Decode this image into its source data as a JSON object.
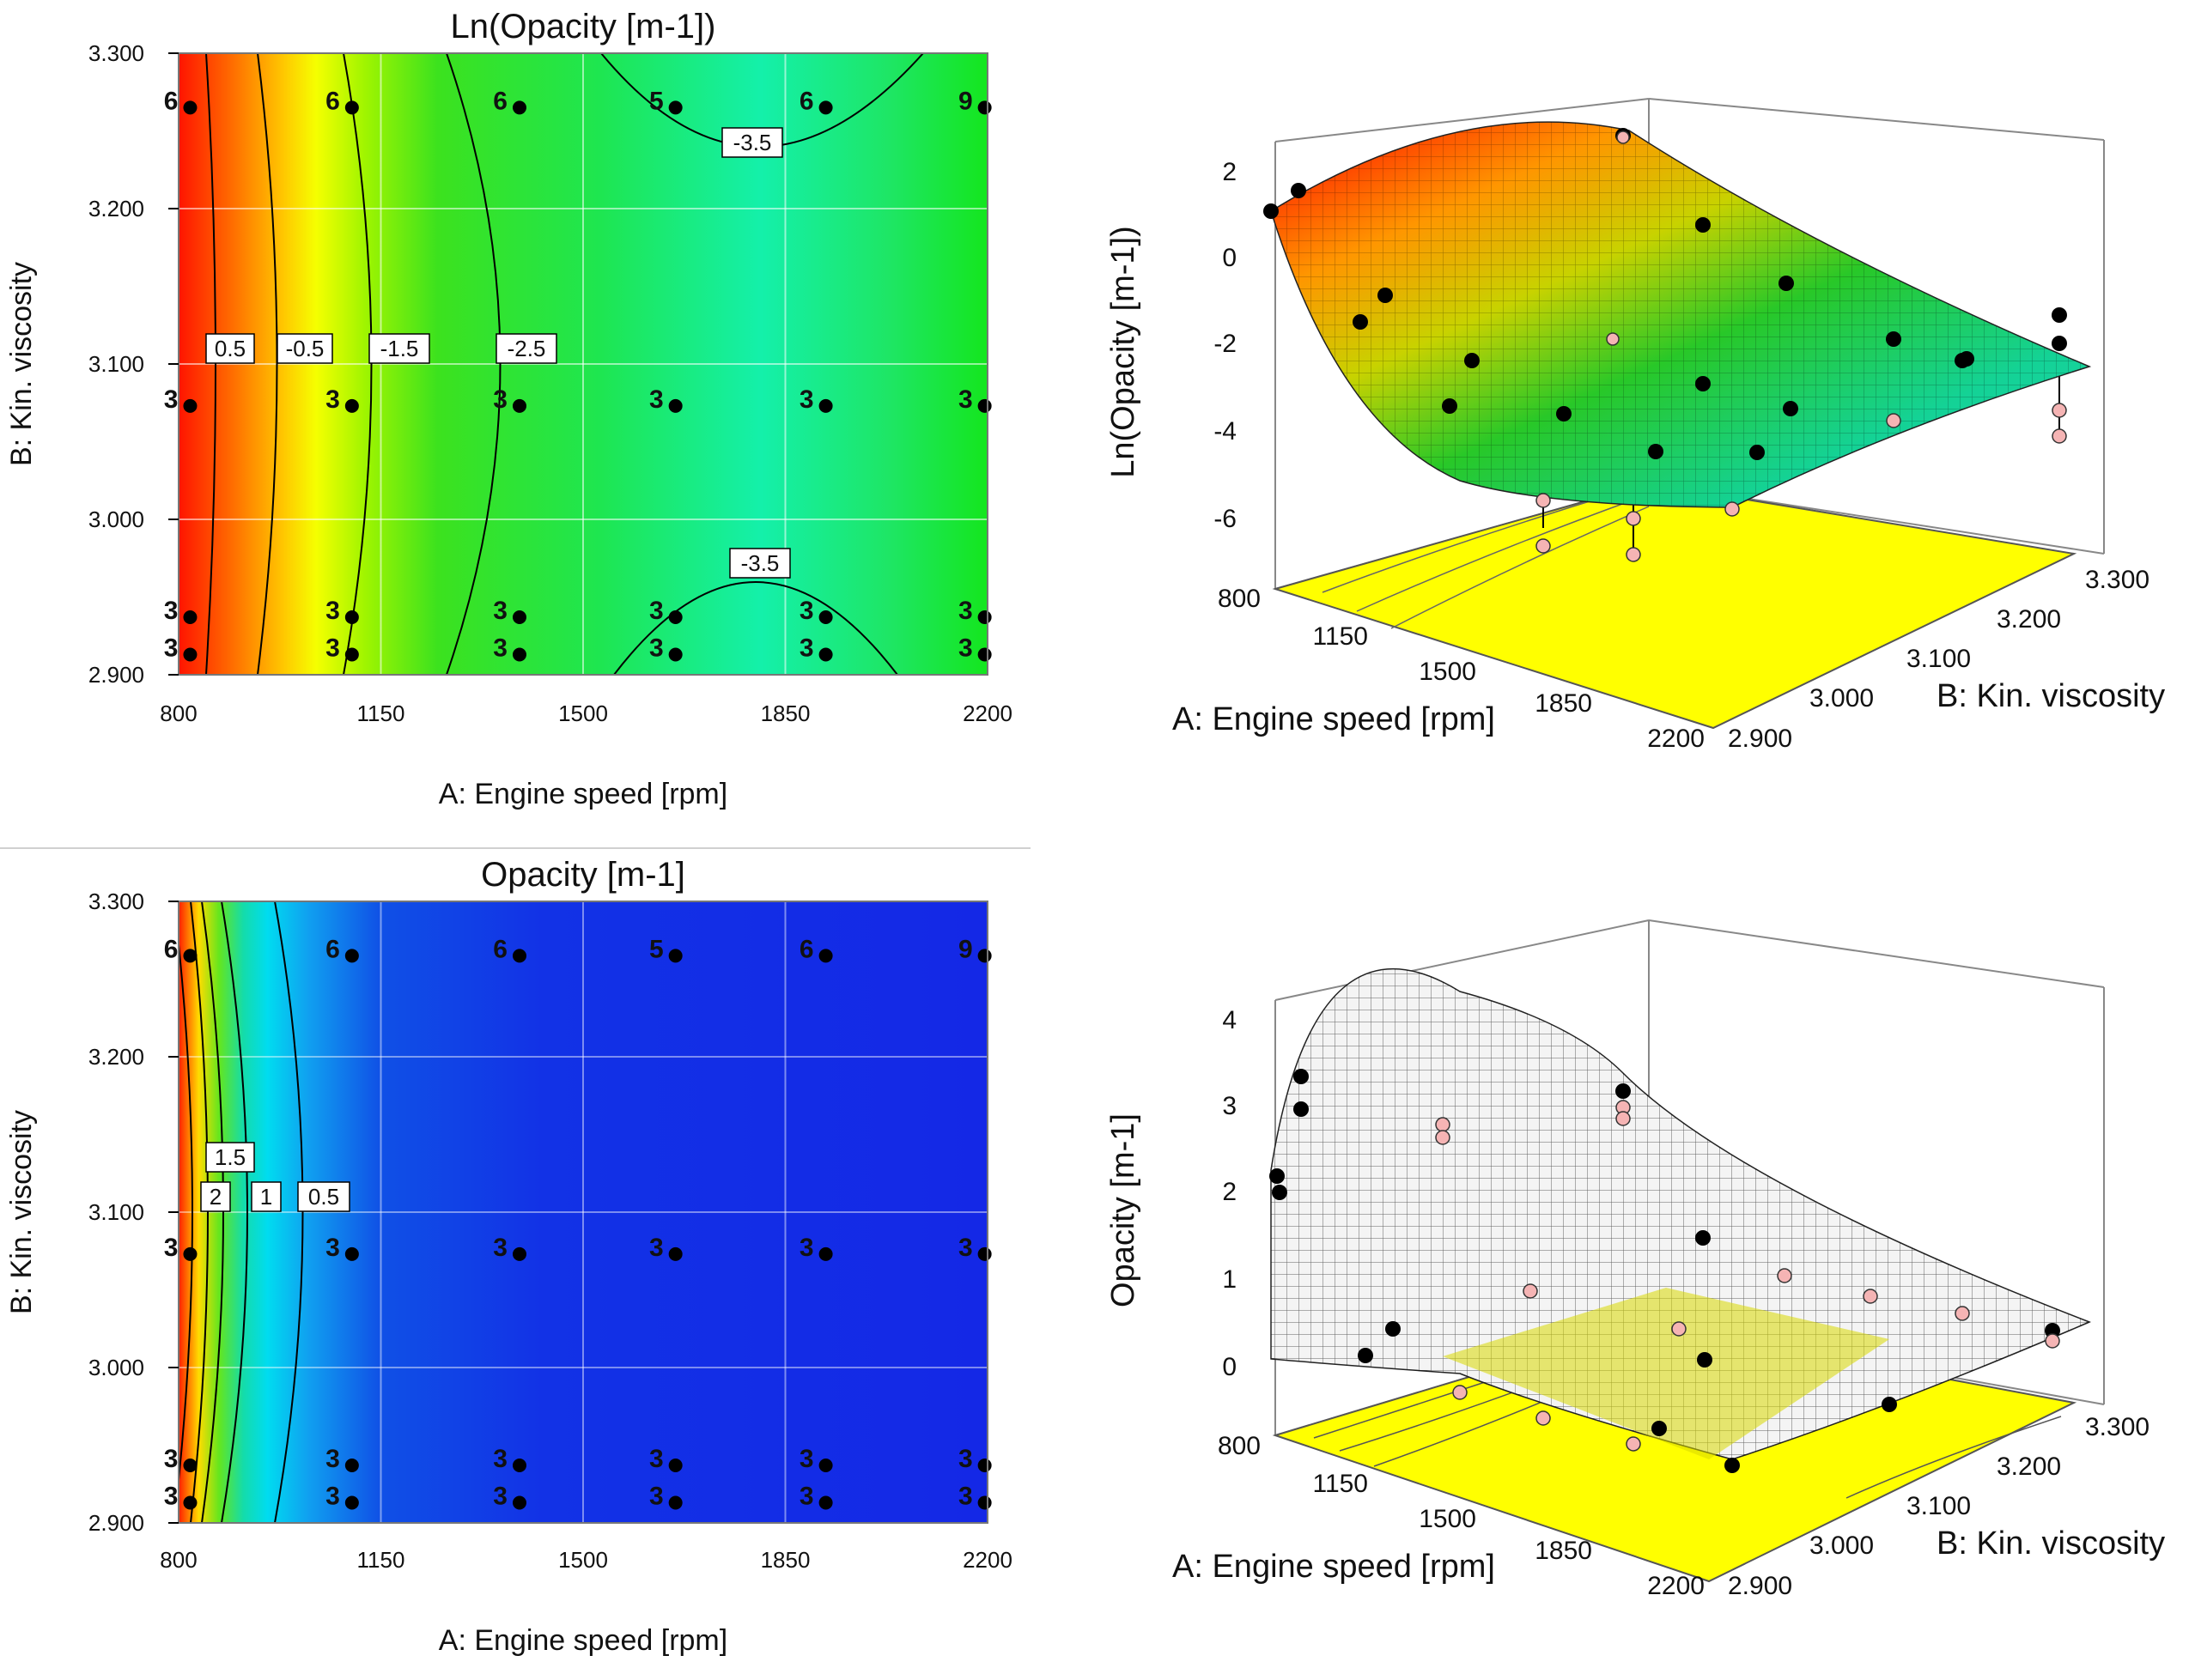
{
  "chart_data": [
    {
      "type": "heatmap",
      "title": "Ln(Opacity [m-1])",
      "xlabel": "A: Engine speed [rpm]",
      "ylabel": "B: Kin. viscosity",
      "xlim": [
        800,
        2200
      ],
      "ylim": [
        2.9,
        3.3
      ],
      "xticks": [
        "800",
        "1150",
        "1500",
        "1850",
        "2200"
      ],
      "yticks": [
        "2.900",
        "3.000",
        "3.100",
        "3.200",
        "3.300"
      ],
      "colormap": "red-yellow-green-cyan",
      "contours": [
        {
          "label": "0.5",
          "x_at_mid": 880
        },
        {
          "label": "-0.5",
          "x_at_mid": 1000
        },
        {
          "label": "-1.5",
          "x_at_mid": 1150
        },
        {
          "label": "-2.5",
          "x_at_mid": 1415
        },
        {
          "label": "-3.5",
          "x_at_mid": 1800,
          "region": "top"
        },
        {
          "label": "-3.5",
          "x_at_mid": 1800,
          "region": "bottom"
        }
      ],
      "design_points": [
        {
          "x": 820,
          "y": 3.265,
          "label": "6"
        },
        {
          "x": 1100,
          "y": 3.265,
          "label": "6"
        },
        {
          "x": 1390,
          "y": 3.265,
          "label": "6"
        },
        {
          "x": 1660,
          "y": 3.265,
          "label": "5"
        },
        {
          "x": 1920,
          "y": 3.265,
          "label": "6"
        },
        {
          "x": 2195,
          "y": 3.265,
          "label": "9"
        },
        {
          "x": 820,
          "y": 3.073,
          "label": "3"
        },
        {
          "x": 1100,
          "y": 3.073,
          "label": "3"
        },
        {
          "x": 1390,
          "y": 3.073,
          "label": "3"
        },
        {
          "x": 1660,
          "y": 3.073,
          "label": "3"
        },
        {
          "x": 1920,
          "y": 3.073,
          "label": "3"
        },
        {
          "x": 2195,
          "y": 3.073,
          "label": "3"
        },
        {
          "x": 820,
          "y": 2.937,
          "label": "3"
        },
        {
          "x": 1100,
          "y": 2.937,
          "label": "3"
        },
        {
          "x": 1390,
          "y": 2.937,
          "label": "3"
        },
        {
          "x": 1660,
          "y": 2.937,
          "label": "3"
        },
        {
          "x": 1920,
          "y": 2.937,
          "label": "3"
        },
        {
          "x": 2195,
          "y": 2.937,
          "label": "3"
        },
        {
          "x": 820,
          "y": 2.913,
          "label": "3"
        },
        {
          "x": 1100,
          "y": 2.913,
          "label": "3"
        },
        {
          "x": 1390,
          "y": 2.913,
          "label": "3"
        },
        {
          "x": 1660,
          "y": 2.913,
          "label": "3"
        },
        {
          "x": 1920,
          "y": 2.913,
          "label": "3"
        },
        {
          "x": 2195,
          "y": 2.913,
          "label": "3"
        }
      ]
    },
    {
      "type": "surface3d",
      "zlabel": "Ln(Opacity [m-1])",
      "xlabel": "A: Engine speed [rpm]",
      "ylabel": "B: Kin. viscosity",
      "zticks": [
        "2",
        "0",
        "-2",
        "-4",
        "-6"
      ],
      "xticks": [
        "800",
        "1150",
        "1500",
        "1850",
        "2200"
      ],
      "yticks": [
        "2.900",
        "3.000",
        "3.100",
        "3.200",
        "3.300"
      ],
      "zlim": [
        -7,
        2.5
      ],
      "surface_colormap": "red-yellow-green-cyan",
      "floor_color": "#ffff00"
    },
    {
      "type": "heatmap",
      "title": "Opacity [m-1]",
      "xlabel": "A: Engine speed [rpm]",
      "ylabel": "B: Kin. viscosity",
      "xlim": [
        800,
        2200
      ],
      "ylim": [
        2.9,
        3.3
      ],
      "xticks": [
        "800",
        "1150",
        "1500",
        "1850",
        "2200"
      ],
      "yticks": [
        "2.900",
        "3.000",
        "3.100",
        "3.200",
        "3.300"
      ],
      "colormap": "red-yellow-green-cyan-blue",
      "contours": [
        {
          "label": "2",
          "x_at_mid": 855
        },
        {
          "label": "1.5",
          "x_at_mid": 890
        },
        {
          "label": "1",
          "x_at_mid": 945
        },
        {
          "label": "0.5",
          "x_at_mid": 1000
        }
      ],
      "design_points": [
        {
          "x": 820,
          "y": 3.265,
          "label": "6"
        },
        {
          "x": 1100,
          "y": 3.265,
          "label": "6"
        },
        {
          "x": 1390,
          "y": 3.265,
          "label": "6"
        },
        {
          "x": 1660,
          "y": 3.265,
          "label": "5"
        },
        {
          "x": 1920,
          "y": 3.265,
          "label": "6"
        },
        {
          "x": 2195,
          "y": 3.265,
          "label": "9"
        },
        {
          "x": 820,
          "y": 3.073,
          "label": "3"
        },
        {
          "x": 1100,
          "y": 3.073,
          "label": "3"
        },
        {
          "x": 1390,
          "y": 3.073,
          "label": "3"
        },
        {
          "x": 1660,
          "y": 3.073,
          "label": "3"
        },
        {
          "x": 1920,
          "y": 3.073,
          "label": "3"
        },
        {
          "x": 2195,
          "y": 3.073,
          "label": "3"
        },
        {
          "x": 820,
          "y": 2.937,
          "label": "3"
        },
        {
          "x": 1100,
          "y": 2.937,
          "label": "3"
        },
        {
          "x": 1390,
          "y": 2.937,
          "label": "3"
        },
        {
          "x": 1660,
          "y": 2.937,
          "label": "3"
        },
        {
          "x": 1920,
          "y": 2.937,
          "label": "3"
        },
        {
          "x": 2195,
          "y": 2.937,
          "label": "3"
        },
        {
          "x": 820,
          "y": 2.913,
          "label": "3"
        },
        {
          "x": 1100,
          "y": 2.913,
          "label": "3"
        },
        {
          "x": 1390,
          "y": 2.913,
          "label": "3"
        },
        {
          "x": 1660,
          "y": 2.913,
          "label": "3"
        },
        {
          "x": 1920,
          "y": 2.913,
          "label": "3"
        },
        {
          "x": 2195,
          "y": 2.913,
          "label": "3"
        }
      ]
    },
    {
      "type": "surface3d",
      "zlabel": "Opacity [m-1]",
      "xlabel": "A: Engine speed [rpm]",
      "ylabel": "B: Kin. viscosity",
      "zticks": [
        "4",
        "3",
        "2",
        "1",
        "0"
      ],
      "xticks": [
        "800",
        "1150",
        "1500",
        "1850",
        "2200"
      ],
      "yticks": [
        "2.900",
        "3.000",
        "3.100",
        "3.200",
        "3.300"
      ],
      "zlim": [
        -0.5,
        4.2
      ],
      "surface_colormap": "white-wireframe",
      "floor_color": "#ffff00"
    }
  ]
}
